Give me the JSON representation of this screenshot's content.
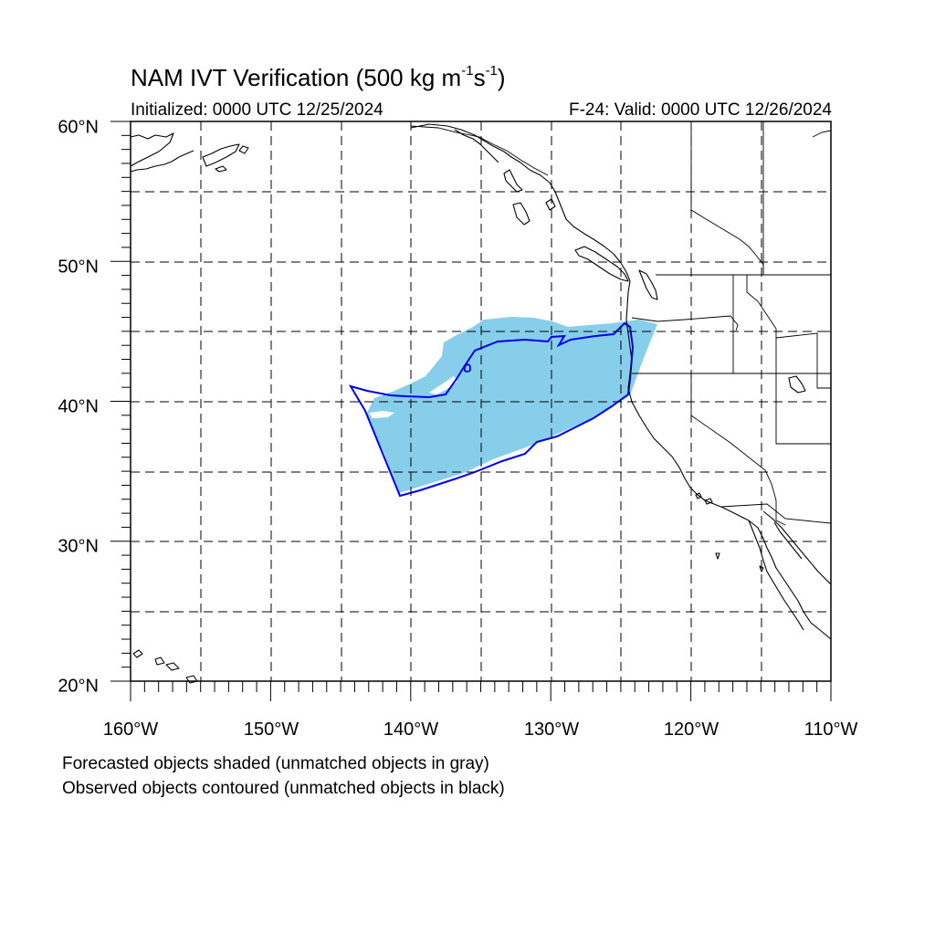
{
  "title": {
    "text": "NAM IVT Verification (500 kg m",
    "sup1": "-1",
    "mid": "s",
    "sup2": "-1",
    "end": ")"
  },
  "subtitle_left": "Initialized: 0000 UTC 12/25/2024",
  "subtitle_right": "F-24: Valid: 0000 UTC 12/26/2024",
  "lat_labels": [
    "60°N",
    "50°N",
    "40°N",
    "30°N",
    "20°N"
  ],
  "lon_labels": [
    "160°W",
    "150°W",
    "140°W",
    "130°W",
    "120°W",
    "110°W"
  ],
  "legend": {
    "line1": "Forecasted objects shaded (unmatched objects in gray)",
    "line2": "Observed objects contoured (unmatched objects in black)"
  },
  "colors": {
    "forecast_fill": "#87ceea",
    "observed_contour": "#0000ee",
    "coastline": "#000000",
    "grid": "#000000"
  },
  "map": {
    "lat_range": [
      20,
      60
    ],
    "lon_range": [
      -160,
      -110
    ],
    "grid_interval_deg": 5
  }
}
